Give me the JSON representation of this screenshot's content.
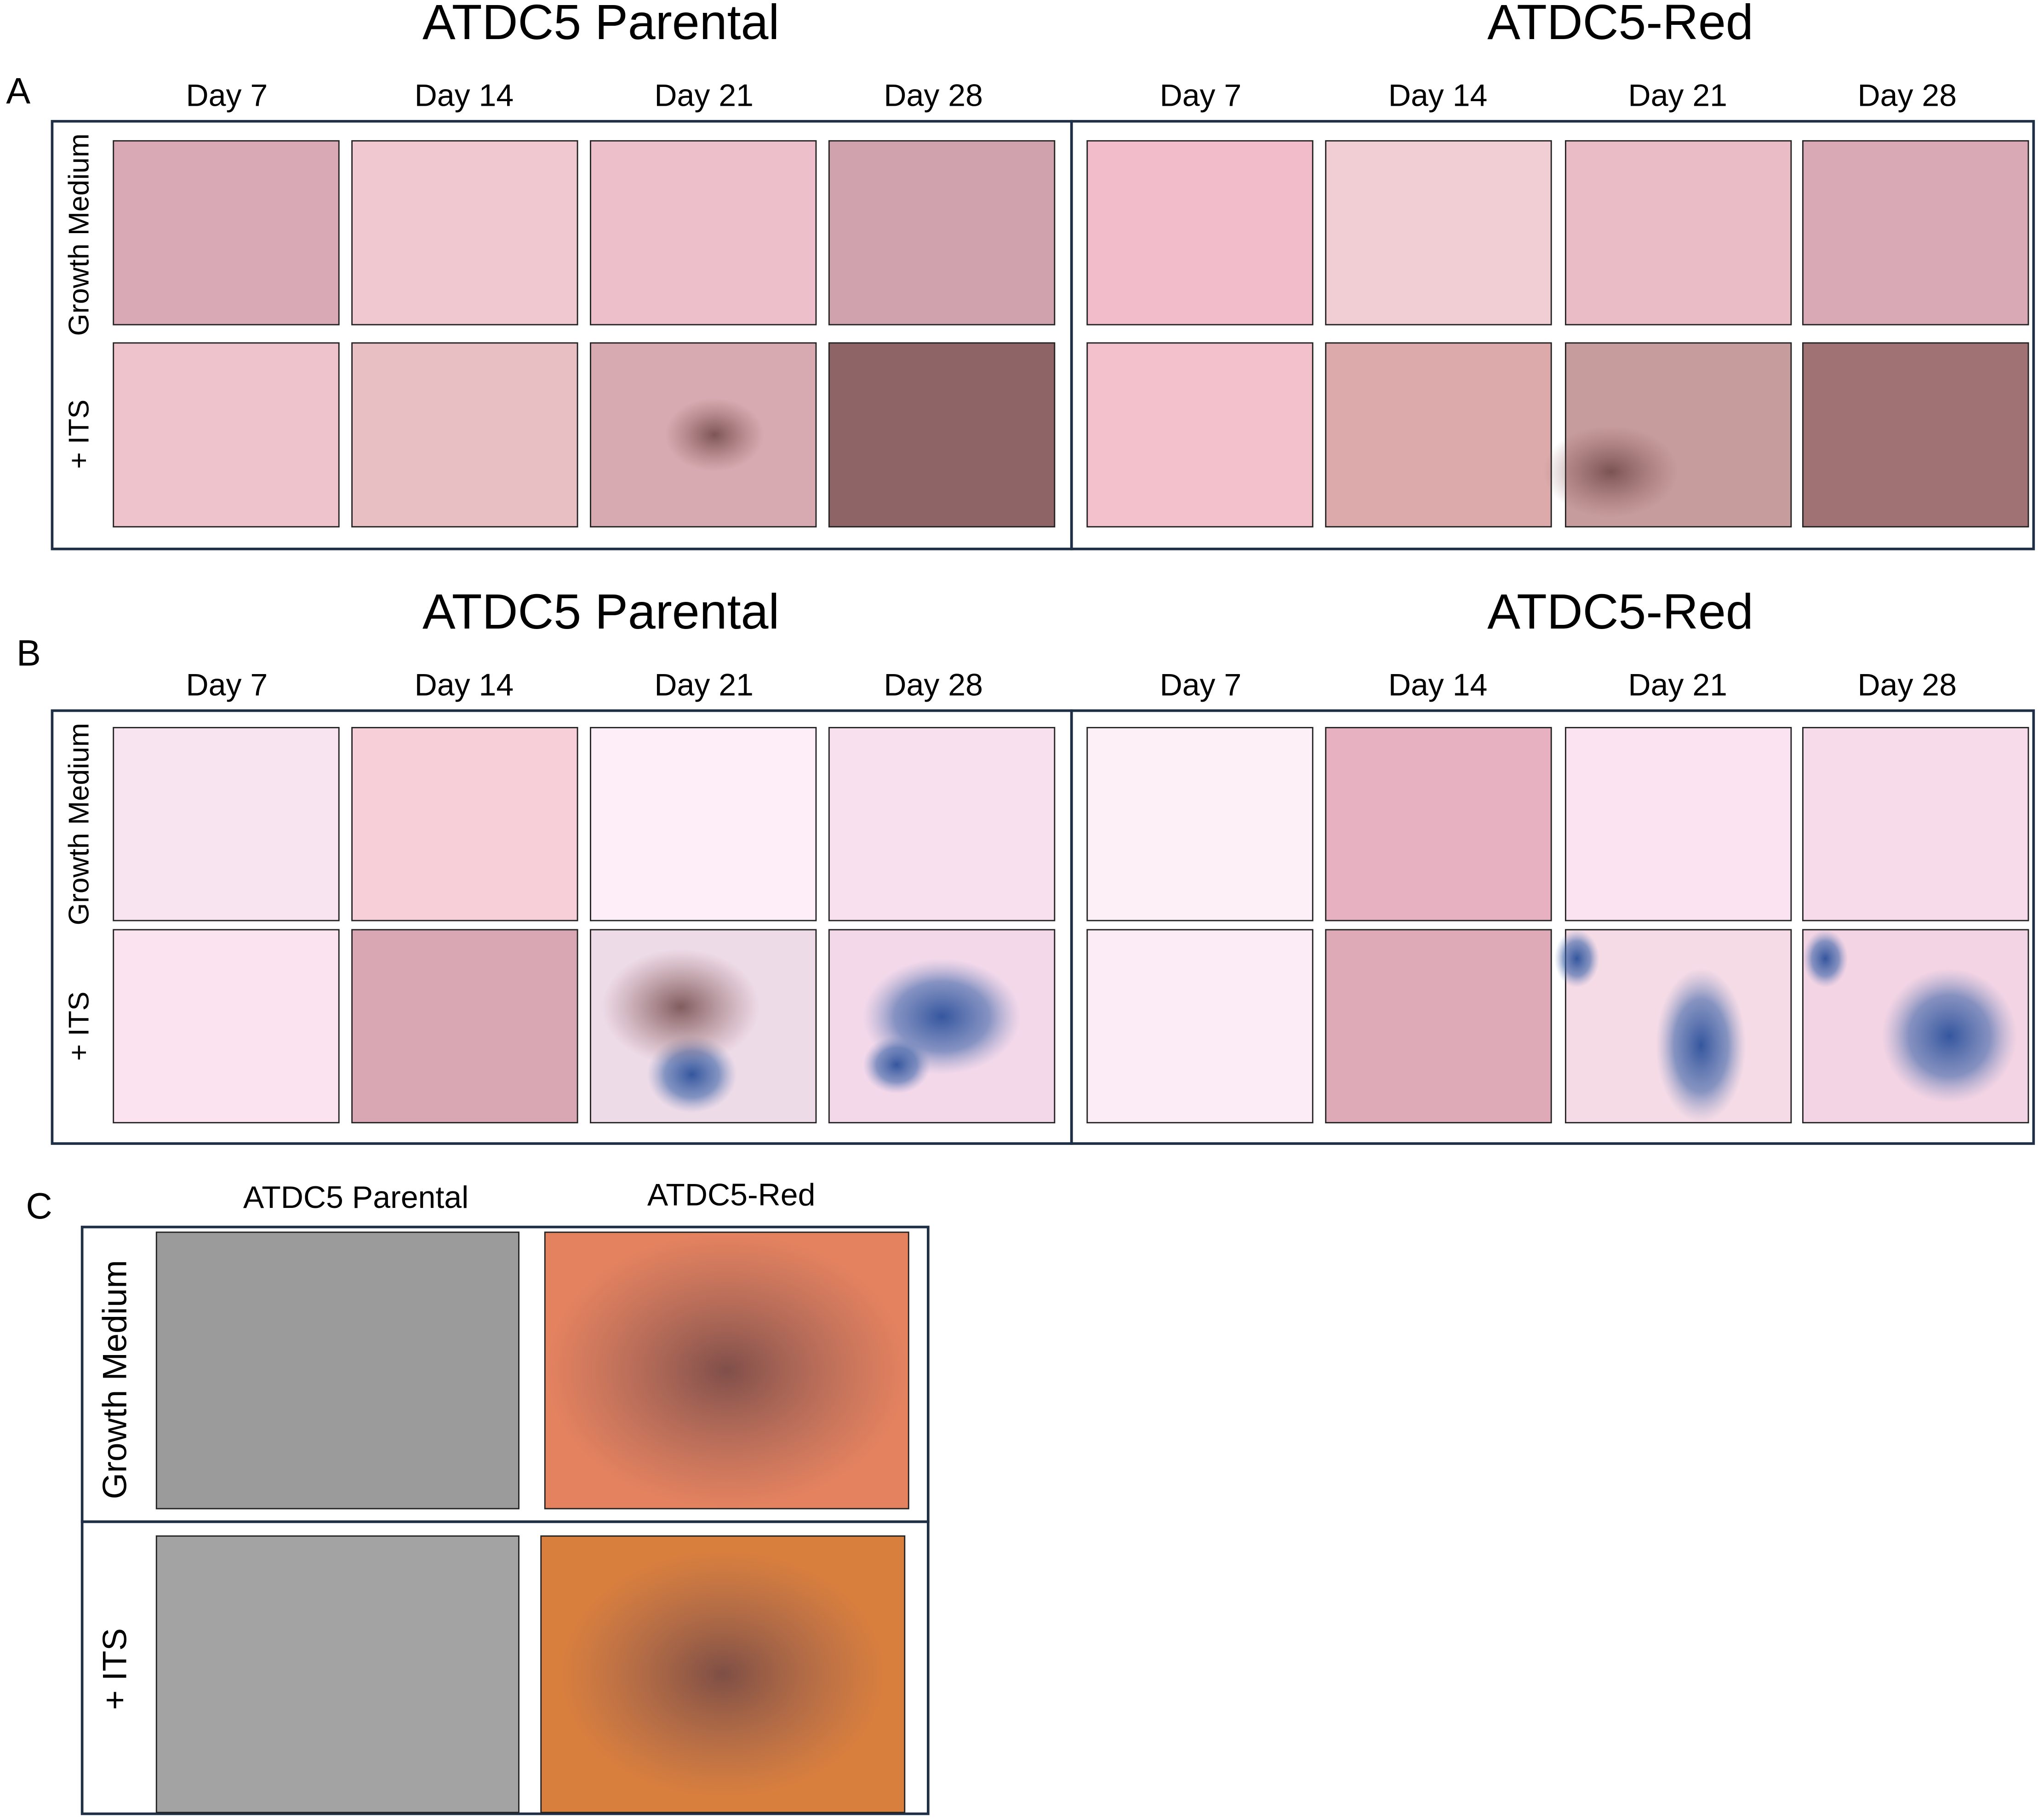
{
  "panels": [
    {
      "label": "A",
      "rows": [
        "Growth Medium",
        "+ ITS"
      ],
      "groups": [
        {
          "title": "ATDC5 Parental",
          "columns": [
            "Day 7",
            "Day 14",
            "Day 21",
            "Day 28"
          ]
        },
        {
          "title": "ATDC5-Red",
          "columns": [
            "Day 7",
            "Day 14",
            "Day 21",
            "Day 28"
          ]
        }
      ]
    },
    {
      "label": "B",
      "rows": [
        "Growth Medium",
        "+ ITS"
      ],
      "groups": [
        {
          "title": "ATDC5 Parental",
          "columns": [
            "Day 7",
            "Day 14",
            "Day 21",
            "Day 28"
          ]
        },
        {
          "title": "ATDC5-Red",
          "columns": [
            "Day 7",
            "Day 14",
            "Day 21",
            "Day 28"
          ]
        }
      ]
    },
    {
      "label": "C",
      "rows": [
        "Growth Medium",
        "+ ITS"
      ],
      "columns": [
        "ATDC5 Parental",
        "ATDC5-Red"
      ]
    }
  ]
}
